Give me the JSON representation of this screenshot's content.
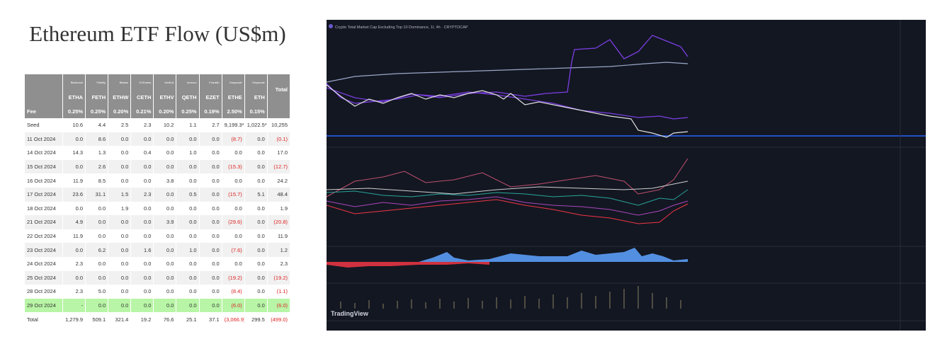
{
  "title": "Ethereum ETF Flow (US$m)",
  "table": {
    "issuers": [
      "Blackrock",
      "Fidelity",
      "Bitwise",
      "21Shares",
      "VanEck",
      "Invesco",
      "Franklin",
      "Grayscale",
      "Grayscale"
    ],
    "tickers": [
      "ETHA",
      "FETH",
      "ETHW",
      "CETH",
      "ETHV",
      "QETH",
      "EZET",
      "ETHE",
      "ETH"
    ],
    "total_header": "Total",
    "fee_label": "Fee",
    "fees": [
      "0.25%",
      "0.25%",
      "0.20%",
      "0.21%",
      "0.20%",
      "0.25%",
      "0.19%",
      "2.50%",
      "0.15%"
    ],
    "rows": [
      [
        "Seed",
        "10.6",
        "4.4",
        "2.5",
        "2.3",
        "10.2",
        "1.1",
        "2.7",
        "9,199.3*",
        "1,022.5*",
        "10,255"
      ],
      [
        "11 Oct 2024",
        "0.0",
        "8.6",
        "0.0",
        "0.0",
        "0.0",
        "0.0",
        "0.0",
        "(8.7)",
        "0.0",
        "(0.1)"
      ],
      [
        "14 Oct 2024",
        "14.3",
        "1.3",
        "0.0",
        "0.4",
        "0.0",
        "1.0",
        "0.0",
        "0.0",
        "0.0",
        "17.0"
      ],
      [
        "15 Oct 2024",
        "0.0",
        "2.6",
        "0.0",
        "0.0",
        "0.0",
        "0.0",
        "0.0",
        "(15.3)",
        "0.0",
        "(12.7)"
      ],
      [
        "16 Oct 2024",
        "11.9",
        "8.5",
        "0.0",
        "0.0",
        "3.8",
        "0.0",
        "0.0",
        "0.0",
        "0.0",
        "24.2"
      ],
      [
        "17 Oct 2024",
        "23.6",
        "31.1",
        "1.5",
        "2.3",
        "0.0",
        "0.5",
        "0.0",
        "(15.7)",
        "5.1",
        "48.4"
      ],
      [
        "18 Oct 2024",
        "0.0",
        "0.0",
        "1.9",
        "0.0",
        "0.0",
        "0.0",
        "0.0",
        "0.0",
        "0.0",
        "1.9"
      ],
      [
        "21 Oct 2024",
        "4.9",
        "0.0",
        "0.0",
        "0.0",
        "3.9",
        "0.0",
        "0.0",
        "(29.6)",
        "0.0",
        "(20.8)"
      ],
      [
        "22 Oct 2024",
        "11.9",
        "0.0",
        "0.0",
        "0.0",
        "0.0",
        "0.0",
        "0.0",
        "0.0",
        "0.0",
        "11.9"
      ],
      [
        "23 Oct 2024",
        "0.0",
        "6.2",
        "0.0",
        "1.6",
        "0.0",
        "1.0",
        "0.0",
        "(7.6)",
        "0.0",
        "1.2"
      ],
      [
        "24 Oct 2024",
        "2.3",
        "0.0",
        "0.0",
        "0.0",
        "0.0",
        "0.0",
        "0.0",
        "0.0",
        "0.0",
        "2.3"
      ],
      [
        "25 Oct 2024",
        "0.0",
        "0.0",
        "0.0",
        "0.0",
        "0.0",
        "0.0",
        "0.0",
        "(19.2)",
        "0.0",
        "(19.2)"
      ],
      [
        "28 Oct 2024",
        "2.3",
        "5.0",
        "0.0",
        "0.0",
        "0.0",
        "0.0",
        "0.0",
        "(8.4)",
        "0.0",
        "(1.1)"
      ],
      [
        "29 Oct 2024",
        "-",
        "0.0",
        "0.0",
        "0.0",
        "0.0",
        "0.0",
        "0.0",
        "(6.0)",
        "0.0",
        "(6.0)"
      ],
      [
        "Total",
        "1,279.9",
        "509.1",
        "321.4",
        "19.2",
        "76.6",
        "25.1",
        "37.1",
        "(3,066.9)",
        "299.5",
        "(499.0)"
      ]
    ]
  },
  "screenshot": {
    "title": "Crypto Total Market Cap Excluding Top 10 Dominance, 1I, 4h · CRYPTOCAP",
    "logo": "TradingView"
  }
}
